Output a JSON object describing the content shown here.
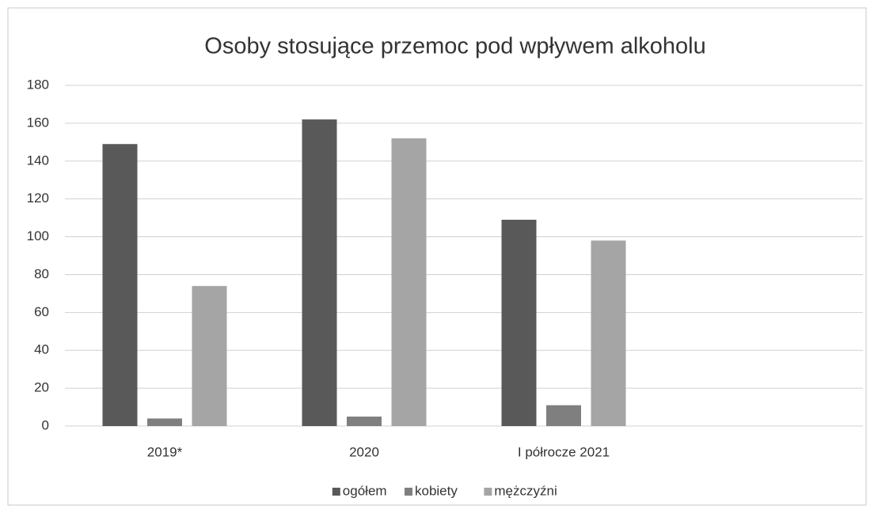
{
  "chart_data": {
    "type": "bar",
    "title": "Osoby stosujące przemoc pod wpływem alkoholu",
    "categories": [
      "2019*",
      "2020",
      "I półrocze 2021",
      null
    ],
    "series": [
      {
        "name": "ogółem",
        "color": "#595959",
        "values": [
          149,
          162,
          109,
          null
        ]
      },
      {
        "name": "kobiety",
        "color": "#7f7f7f",
        "values": [
          4,
          5,
          11,
          null
        ]
      },
      {
        "name": "mężczyźni",
        "color": "#a5a5a5",
        "values": [
          74,
          152,
          98,
          null
        ]
      }
    ],
    "ylim": [
      0,
      180
    ],
    "yticks": [
      0,
      20,
      40,
      60,
      80,
      100,
      120,
      140,
      160,
      180
    ],
    "grid": true,
    "legend": "bottom"
  }
}
